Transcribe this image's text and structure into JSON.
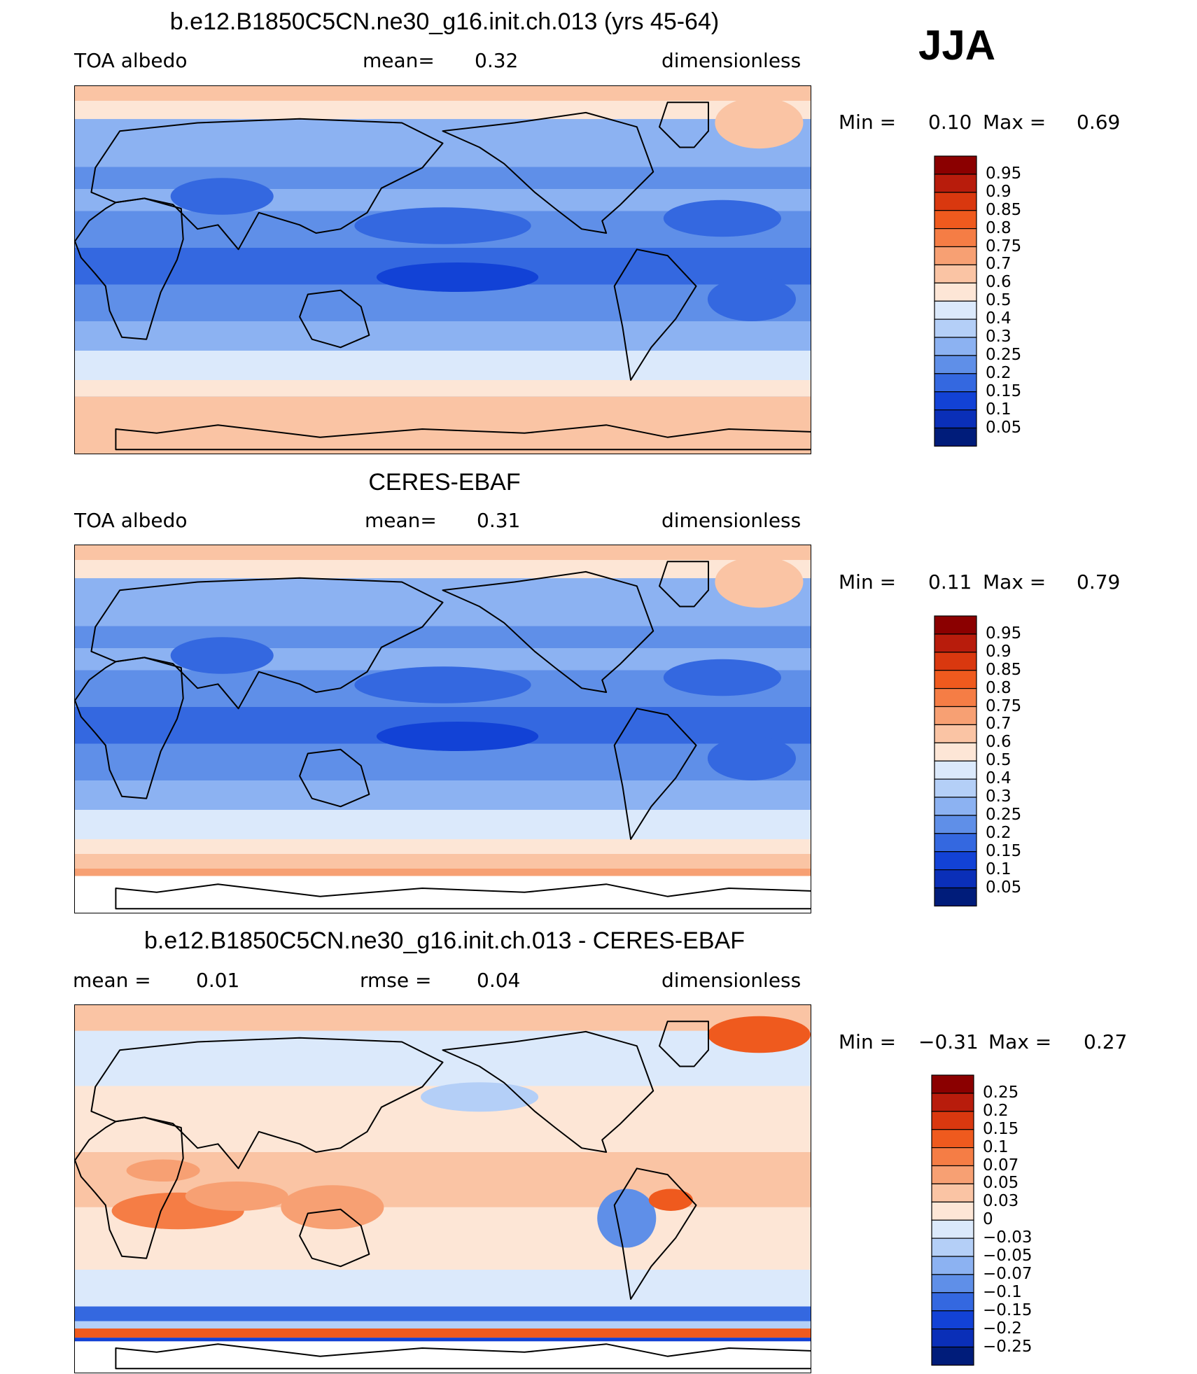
{
  "season": "JJA",
  "panels": [
    {
      "title": "b.e12.B1850C5CN.ne30_g16.init.ch.013 (yrs 45-64)",
      "left_label": "TOA albedo",
      "center_label": "mean=",
      "center_value": "0.32",
      "right_label": "dimensionless",
      "min_label": "Min =",
      "min_value": "0.10",
      "max_label": "Max =",
      "max_value": "0.69"
    },
    {
      "title": "CERES-EBAF",
      "left_label": "TOA albedo",
      "center_label": "mean=",
      "center_value": "0.31",
      "right_label": "dimensionless",
      "min_label": "Min =",
      "min_value": "0.11",
      "max_label": "Max =",
      "max_value": "0.79"
    },
    {
      "title": "b.e12.B1850C5CN.ne30_g16.init.ch.013 - CERES-EBAF",
      "left_label": "mean =",
      "left_value": "0.01",
      "center_label": "rmse =",
      "center_value": "0.04",
      "right_label": "dimensionless",
      "min_label": "Min =",
      "min_value": "−0.31",
      "max_label": "Max =",
      "max_value": "0.27"
    }
  ],
  "chart_data": [
    {
      "type": "heatmap",
      "title": "b.e12.B1850C5CN.ne30_g16.init.ch.013 (yrs 45-64)",
      "variable": "TOA albedo",
      "units": "dimensionless",
      "mean": 0.32,
      "min": 0.1,
      "max": 0.69,
      "colorbar_levels": [
        "0.95",
        "0.9",
        "0.85",
        "0.8",
        "0.75",
        "0.7",
        "0.6",
        "0.5",
        "0.4",
        "0.3",
        "0.25",
        "0.2",
        "0.15",
        "0.1",
        "0.05"
      ],
      "colorbar_colors": [
        "#8b0000",
        "#b81c0c",
        "#d9380f",
        "#ef5a1e",
        "#f57d45",
        "#f7a073",
        "#fac4a4",
        "#fde6d6",
        "#dbe9fb",
        "#b4cff7",
        "#8cb2f2",
        "#5f8fe8",
        "#3468e0",
        "#1242d6",
        "#0a2fb8",
        "#001c7a"
      ]
    },
    {
      "type": "heatmap",
      "title": "CERES-EBAF",
      "variable": "TOA albedo",
      "units": "dimensionless",
      "mean": 0.31,
      "min": 0.11,
      "max": 0.79,
      "colorbar_levels": [
        "0.95",
        "0.9",
        "0.85",
        "0.8",
        "0.75",
        "0.7",
        "0.6",
        "0.5",
        "0.4",
        "0.3",
        "0.25",
        "0.2",
        "0.15",
        "0.1",
        "0.05"
      ],
      "colorbar_colors": [
        "#8b0000",
        "#b81c0c",
        "#d9380f",
        "#ef5a1e",
        "#f57d45",
        "#f7a073",
        "#fac4a4",
        "#fde6d6",
        "#dbe9fb",
        "#b4cff7",
        "#8cb2f2",
        "#5f8fe8",
        "#3468e0",
        "#1242d6",
        "#0a2fb8",
        "#001c7a"
      ]
    },
    {
      "type": "heatmap",
      "title": "b.e12.B1850C5CN.ne30_g16.init.ch.013 - CERES-EBAF",
      "units": "dimensionless",
      "mean": 0.01,
      "rmse": 0.04,
      "min": -0.31,
      "max": 0.27,
      "colorbar_levels": [
        "0.25",
        "0.2",
        "0.15",
        "0.1",
        "0.07",
        "0.05",
        "0.03",
        "0",
        "−0.03",
        "−0.05",
        "−0.07",
        "−0.1",
        "−0.15",
        "−0.2",
        "−0.25"
      ],
      "colorbar_colors": [
        "#8b0000",
        "#b81c0c",
        "#d9380f",
        "#ef5a1e",
        "#f57d45",
        "#f7a073",
        "#fac4a4",
        "#fde6d6",
        "#dbe9fb",
        "#b4cff7",
        "#8cb2f2",
        "#5f8fe8",
        "#3468e0",
        "#1242d6",
        "#0a2fb8",
        "#001c7a"
      ]
    }
  ]
}
